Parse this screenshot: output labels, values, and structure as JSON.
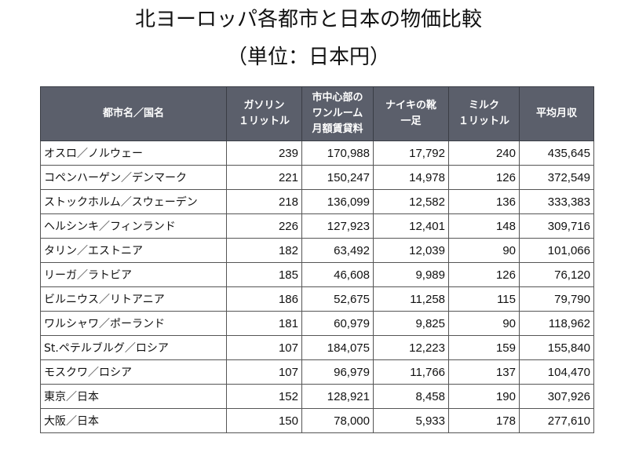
{
  "title_line1": "北ヨーロッパ各都市と日本の物価比較",
  "title_line2": "（単位：日本円）",
  "headers": [
    [
      "都市名／国名"
    ],
    [
      "ガソリン",
      "１リットル"
    ],
    [
      "市中心部の",
      "ワンルーム",
      "月額賃貸料"
    ],
    [
      "ナイキの靴",
      "一足"
    ],
    [
      "ミルク",
      "１リットル"
    ],
    [
      "平均月収"
    ]
  ],
  "rows": [
    [
      "オスロ／ノルウェー",
      "239",
      "170,988",
      "17,792",
      "240",
      "435,645"
    ],
    [
      "コペンハーゲン／デンマーク",
      "221",
      "150,247",
      "14,978",
      "126",
      "372,549"
    ],
    [
      "ストックホルム／スウェーデン",
      "218",
      "136,099",
      "12,582",
      "136",
      "333,383"
    ],
    [
      "ヘルシンキ／フィンランド",
      "226",
      "127,923",
      "12,401",
      "148",
      "309,716"
    ],
    [
      "タリン／エストニア",
      "182",
      "63,492",
      "12,039",
      "90",
      "101,066"
    ],
    [
      "リーガ／ラトビア",
      "185",
      "46,608",
      "9,989",
      "126",
      "76,120"
    ],
    [
      "ビルニウス／リトアニア",
      "186",
      "52,675",
      "11,258",
      "115",
      "79,790"
    ],
    [
      "ワルシャワ／ポーランド",
      "181",
      "60,979",
      "9,825",
      "90",
      "118,962"
    ],
    [
      "St.ペテルブルグ／ロシア",
      "107",
      "184,075",
      "12,223",
      "159",
      "155,840"
    ],
    [
      "モスクワ／ロシア",
      "107",
      "96,979",
      "11,766",
      "137",
      "104,470"
    ],
    [
      "東京／日本",
      "152",
      "128,921",
      "8,458",
      "190",
      "307,926"
    ],
    [
      "大阪／日本",
      "150",
      "78,000",
      "5,933",
      "178",
      "277,610"
    ]
  ]
}
